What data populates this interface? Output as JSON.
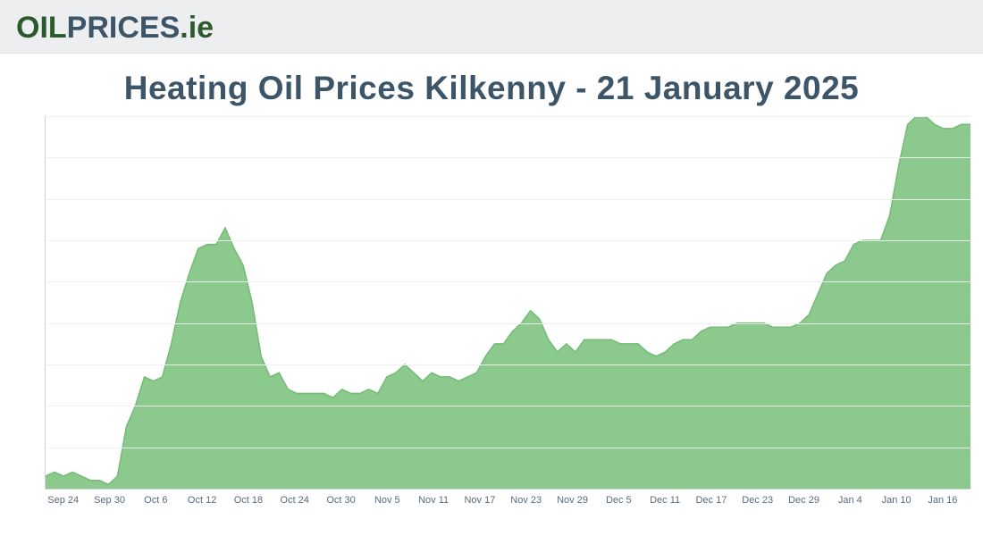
{
  "logo": {
    "part1": "OIL",
    "part2": "PRICES",
    "part3": ".ie",
    "color1": "#2c5a2d",
    "color2": "#3d5568",
    "color3": "#2c5a2d"
  },
  "title": "Heating Oil Prices Kilkenny - 21 January 2025",
  "title_color": "#3d5568",
  "chart": {
    "type": "area",
    "y_prefix": "€",
    "ylim": [
      920,
      1010
    ],
    "ytick_step": 10,
    "yticks": [
      920,
      930,
      940,
      950,
      960,
      970,
      980,
      990,
      1000,
      1010
    ],
    "xticks": [
      "Sep 24",
      "Sep 30",
      "Oct 6",
      "Oct 12",
      "Oct 18",
      "Oct 24",
      "Oct 30",
      "Nov 5",
      "Nov 11",
      "Nov 17",
      "Nov 23",
      "Nov 29",
      "Dec 5",
      "Dec 11",
      "Dec 17",
      "Dec 23",
      "Dec 29",
      "Jan 4",
      "Jan 10",
      "Jan 16"
    ],
    "xtick_count": 20,
    "series_values": [
      923,
      924,
      923,
      924,
      923,
      922,
      922,
      921,
      923,
      935,
      940,
      947,
      946,
      947,
      955,
      965,
      972,
      978,
      979,
      979,
      983,
      978,
      974,
      965,
      952,
      947,
      948,
      944,
      943,
      943,
      943,
      943,
      942,
      944,
      943,
      943,
      944,
      943,
      947,
      948,
      950,
      948,
      946,
      948,
      947,
      947,
      946,
      947,
      948,
      952,
      955,
      955,
      958,
      960,
      963,
      961,
      956,
      953,
      955,
      953,
      956,
      956,
      956,
      956,
      955,
      955,
      955,
      953,
      952,
      953,
      955,
      956,
      956,
      958,
      959,
      959,
      959,
      960,
      960,
      960,
      960,
      959,
      959,
      959,
      960,
      962,
      967,
      972,
      974,
      975,
      979,
      980,
      980,
      980,
      986,
      998,
      1008,
      1010,
      1010,
      1008,
      1007,
      1007,
      1008,
      1008
    ],
    "area_color": "#8bc98c",
    "line_color": "#74bb75",
    "line_width": 1.5,
    "background_color": "#ffffff",
    "grid_color": "#eef0f2",
    "axis_color": "#d0d5da",
    "label_color": "#5a6b7b",
    "label_fontsize": 12
  }
}
